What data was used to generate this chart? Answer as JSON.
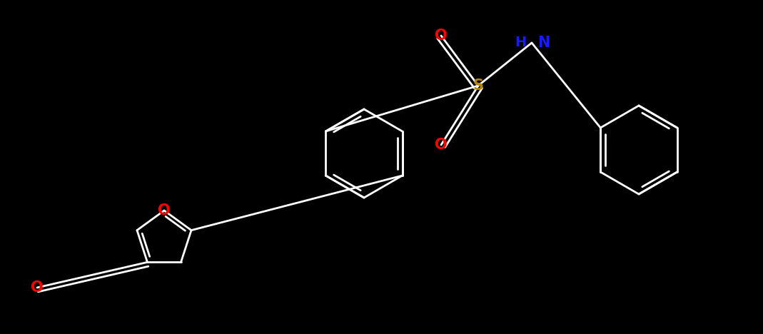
{
  "background_color": "#000000",
  "atom_colors": {
    "O": "#ff0000",
    "S": "#b8860b",
    "N": "#1a1aff",
    "C": "#ffffff"
  },
  "bond_lw": 2.0,
  "font_size": 15,
  "fig_width": 10.69,
  "fig_height": 4.68,
  "dpi": 100,
  "xlim": [
    0,
    10.69
  ],
  "ylim": [
    0,
    4.68
  ]
}
